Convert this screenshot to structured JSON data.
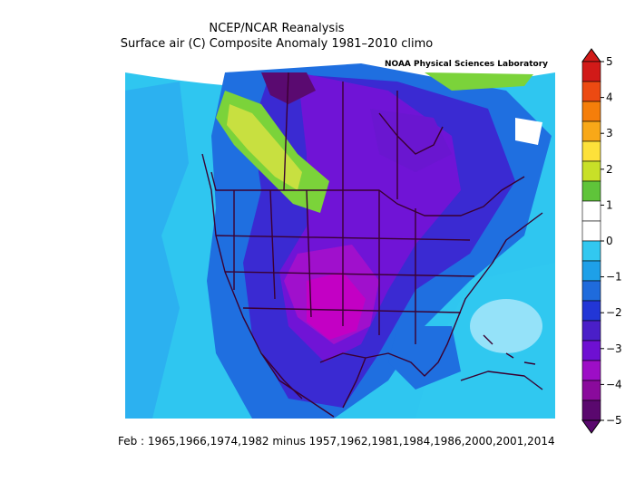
{
  "header": {
    "title": "NCEP/NCAR Reanalysis",
    "subtitle": "Surface air (C) Composite Anomaly 1981–2010 climo"
  },
  "map": {
    "credit": "NOAA Physical Sciences Laboratory",
    "colors": {
      "ocean_light": "#30c8f0",
      "cyan": "#00c4f4",
      "blue1": "#2aa0f0",
      "blue2": "#1f6fe0",
      "blue3": "#2a3ed8",
      "indigo": "#4b1fc8",
      "purple": "#7a14d8",
      "violet": "#9d10d0",
      "magenta": "#c000c8",
      "dark": "#5a0a70",
      "green": "#7bd33a",
      "yellowgreen": "#c8e040",
      "lightgreen": "#a8dc60",
      "border": "#3a0030"
    }
  },
  "colorbar": {
    "labels": [
      "5",
      "4",
      "3",
      "2",
      "1",
      "0",
      "−1",
      "−2",
      "−3",
      "−4",
      "−5"
    ],
    "colors": [
      "#d11a18",
      "#ec4a12",
      "#f57e0a",
      "#f8a818",
      "#fde13a",
      "#c8e028",
      "#5fc43a",
      "#ffffff",
      "#ffffff",
      "#32c8f0",
      "#1ea0e8",
      "#1f6bdc",
      "#2236d6",
      "#4a1fc8",
      "#6e10d2",
      "#9d0ec6",
      "#8a0a9c",
      "#5a086e"
    ]
  },
  "footer": {
    "caption": "Feb : 1965,1966,1974,1982 minus 1957,1962,1981,1984,1986,2000,2001,2014"
  }
}
